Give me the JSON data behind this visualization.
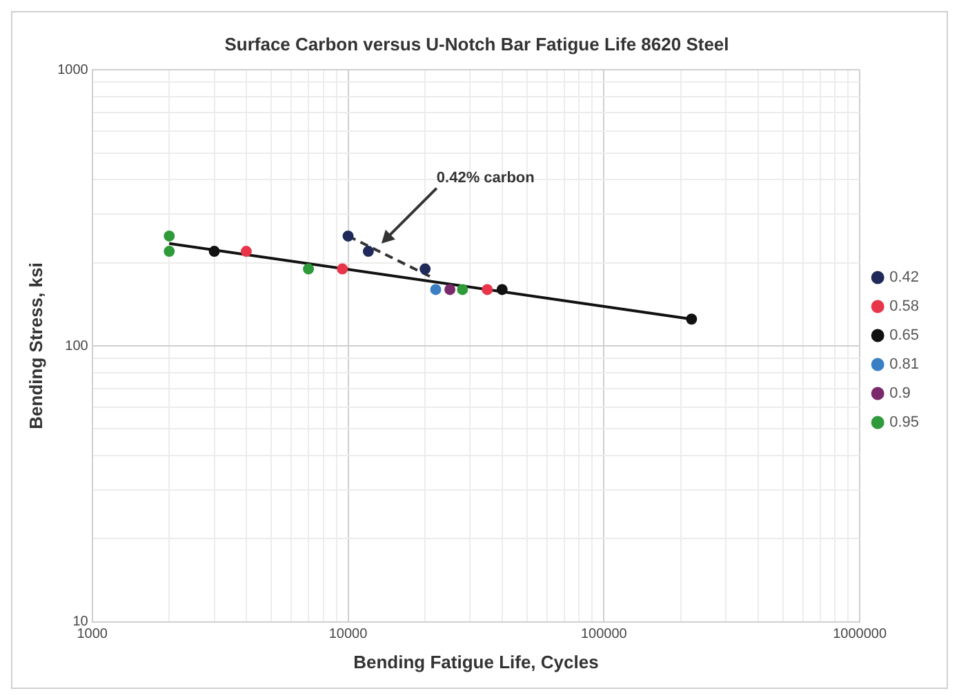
{
  "chart_data": {
    "type": "scatter",
    "title": "Surface Carbon versus U-Notch Bar Fatigue Life 8620 Steel",
    "xlabel": "Bending Fatigue Life, Cycles",
    "ylabel": "Bending Stress, ksi",
    "log": "xy",
    "xlim": [
      1000,
      1000000
    ],
    "ylim": [
      10,
      1000
    ],
    "xticks": [
      1000,
      {
        "value": 2000,
        "label": null
      },
      {
        "value": 3000,
        "label": null
      },
      {
        "value": 4000,
        "label": null
      },
      {
        "value": 5000,
        "label": null
      },
      {
        "value": 6000,
        "label": null
      },
      {
        "value": 7000,
        "label": null
      },
      {
        "value": 8000,
        "label": null
      },
      {
        "value": 9000,
        "label": null
      },
      10000,
      {
        "value": 20000,
        "label": null
      },
      {
        "value": 30000,
        "label": null
      },
      {
        "value": 40000,
        "label": null
      },
      {
        "value": 50000,
        "label": null
      },
      {
        "value": 60000,
        "label": null
      },
      {
        "value": 70000,
        "label": null
      },
      {
        "value": 80000,
        "label": null
      },
      {
        "value": 90000,
        "label": null
      },
      100000,
      {
        "value": 200000,
        "label": null
      },
      {
        "value": 300000,
        "label": null
      },
      {
        "value": 400000,
        "label": null
      },
      {
        "value": 500000,
        "label": null
      },
      {
        "value": 600000,
        "label": null
      },
      {
        "value": 700000,
        "label": null
      },
      {
        "value": 800000,
        "label": null
      },
      {
        "value": 900000,
        "label": null
      },
      1000000
    ],
    "yticks": [
      10,
      {
        "value": 20,
        "label": null
      },
      {
        "value": 30,
        "label": null
      },
      {
        "value": 40,
        "label": null
      },
      {
        "value": 50,
        "label": null
      },
      {
        "value": 60,
        "label": null
      },
      {
        "value": 70,
        "label": null
      },
      {
        "value": 80,
        "label": null
      },
      {
        "value": 90,
        "label": null
      },
      100,
      {
        "value": 200,
        "label": null
      },
      {
        "value": 300,
        "label": null
      },
      {
        "value": 400,
        "label": null
      },
      {
        "value": 500,
        "label": null
      },
      {
        "value": 600,
        "label": null
      },
      {
        "value": 700,
        "label": null
      },
      {
        "value": 800,
        "label": null
      },
      {
        "value": 900,
        "label": null
      },
      1000
    ],
    "grid": true,
    "legend": "right",
    "marker": "circle",
    "series": [
      {
        "name": "0.42",
        "color": "#1f2a5a",
        "x": [
          10000,
          12000,
          20000
        ],
        "values": [
          250,
          220,
          190
        ]
      },
      {
        "name": "0.58",
        "color": "#e8354a",
        "x": [
          4000,
          9500,
          35000
        ],
        "values": [
          220,
          190,
          160
        ]
      },
      {
        "name": "0.65",
        "color": "#111111",
        "x": [
          3000,
          40000,
          220000
        ],
        "values": [
          220,
          160,
          125
        ]
      },
      {
        "name": "0.81",
        "color": "#3a7fc4",
        "x": [
          22000
        ],
        "values": [
          160
        ]
      },
      {
        "name": "0.9",
        "color": "#7a2a6a",
        "x": [
          25000
        ],
        "values": [
          160
        ]
      },
      {
        "name": "0.95",
        "color": "#2e9a3a",
        "x": [
          2000,
          2000,
          7000,
          28000
        ],
        "values": [
          250,
          220,
          190,
          160
        ]
      },
      {
        "type": "line",
        "color": "#333333",
        "line_style": "dashed",
        "marker": "none",
        "x": [
          10000,
          21000
        ],
        "values": [
          250,
          178
        ]
      },
      {
        "type": "line",
        "color": "#111111",
        "line_style": "solid",
        "marker": "none",
        "x": [
          2000,
          220000
        ],
        "values": [
          235,
          125
        ]
      }
    ],
    "annotations": [
      {
        "text": "0.42% carbon",
        "x": 13500,
        "y": 235
      }
    ]
  }
}
